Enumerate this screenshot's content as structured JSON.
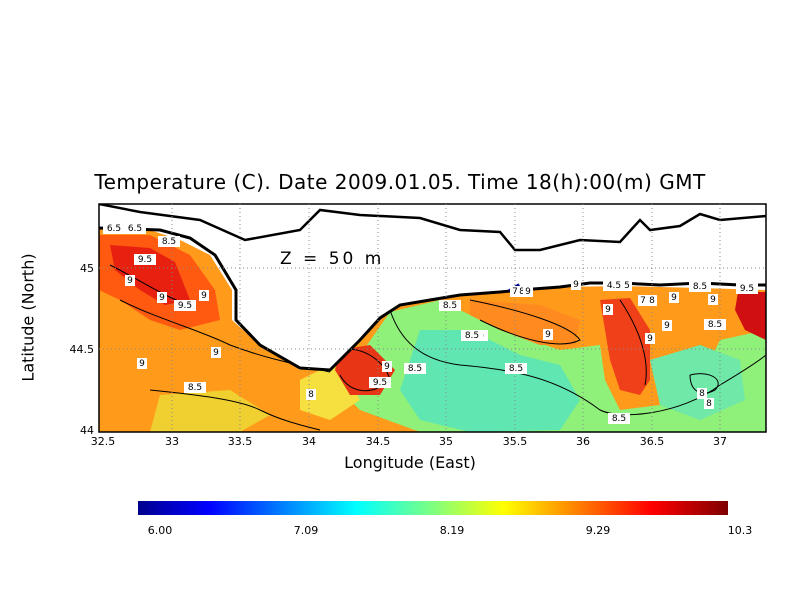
{
  "title": "Temperature (C). Date 2009.01.05. Time 18(h):00(m) GMT",
  "depth_label": "Z = 50 m",
  "xlabel": "Longitude (East)",
  "ylabel": "Latitude (North)",
  "x_ticks": [
    "32.5",
    "33",
    "33.5",
    "34",
    "34.5",
    "35",
    "35.5",
    "36",
    "36.5",
    "37"
  ],
  "y_ticks": [
    "45",
    "44.5",
    "44"
  ],
  "colorbar_ticks": [
    "6.00",
    "7.09",
    "8.19",
    "9.29",
    "10.3"
  ],
  "contour_labels": [
    "6.5",
    "6.5",
    "9.5",
    "9",
    "9",
    "9.5",
    "9",
    "9",
    "9",
    "8.5",
    "8",
    "9",
    "9.5",
    "8.5",
    "8.5",
    "8.5",
    "9",
    "7",
    "8",
    "9",
    "9",
    "4.5",
    "5",
    "7",
    "8",
    "9",
    "9",
    "8.5",
    "9.5",
    "9",
    "8.5",
    "9",
    "9",
    "8.5",
    "8",
    "8",
    "8.5",
    "8.5",
    "8.5"
  ],
  "chart_data": {
    "type": "heatmap",
    "title": "Temperature (C). Date 2009.01.05. Time 18(h):00(m) GMT",
    "annotation": "Z = 50 m",
    "xlabel": "Longitude (East)",
    "ylabel": "Latitude (North)",
    "xlim": [
      32.5,
      37.3
    ],
    "ylim": [
      44.0,
      45.3
    ],
    "colorbar": {
      "min": 6.0,
      "max": 10.3,
      "ticks": [
        6.0,
        7.09,
        8.19,
        9.29,
        10.3
      ]
    },
    "grid": true,
    "colors": {
      "low": "#00008f",
      "high": "#7f0000"
    }
  }
}
